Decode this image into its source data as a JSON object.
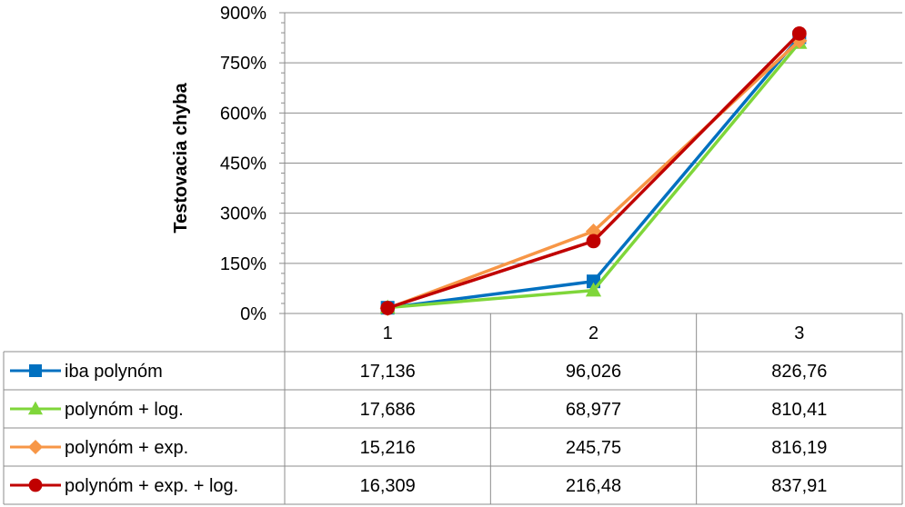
{
  "chart_data": {
    "type": "line",
    "title": "",
    "ylabel": "Testovacia chyba",
    "xlabel": "",
    "ylim": [
      0,
      900
    ],
    "y_ticks": [
      "0%",
      "150%",
      "300%",
      "450%",
      "600%",
      "750%",
      "900%"
    ],
    "y_tick_values": [
      0,
      150,
      300,
      450,
      600,
      750,
      900
    ],
    "categories": [
      "1",
      "2",
      "3"
    ],
    "grid": true,
    "legend": "data-table",
    "series": [
      {
        "name": "iba polynóm",
        "color": "#0070C0",
        "marker": "square",
        "values": [
          17.136,
          96.026,
          826.76
        ],
        "labels": [
          "17,136",
          "96,026",
          "826,76"
        ]
      },
      {
        "name": "polynóm + log.",
        "color": "#7FD63A",
        "marker": "triangle",
        "values": [
          17.686,
          68.977,
          810.41
        ],
        "labels": [
          "17,686",
          "68,977",
          "810,41"
        ]
      },
      {
        "name": "polynóm + exp.",
        "color": "#F79646",
        "marker": "diamond",
        "values": [
          15.216,
          245.75,
          816.19
        ],
        "labels": [
          "15,216",
          "245,75",
          "816,19"
        ]
      },
      {
        "name": "polynóm + exp. + log.",
        "color": "#C00000",
        "marker": "circle",
        "values": [
          16.309,
          216.48,
          837.91
        ],
        "labels": [
          "16,309",
          "216,48",
          "837,91"
        ]
      }
    ]
  }
}
